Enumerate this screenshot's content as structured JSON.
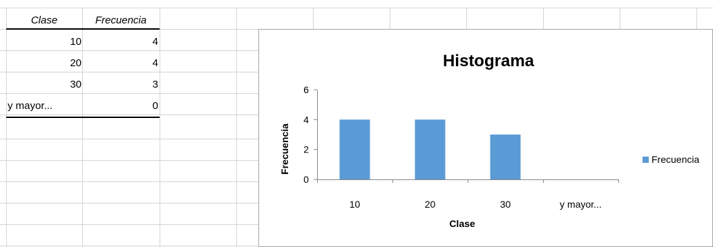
{
  "table": {
    "headers": [
      "Clase",
      "Frecuencia"
    ],
    "rows": [
      {
        "clase": "10",
        "frecuencia": "4"
      },
      {
        "clase": "20",
        "frecuencia": "4"
      },
      {
        "clase": "30",
        "frecuencia": "3"
      },
      {
        "clase": "y mayor...",
        "frecuencia": "0"
      }
    ]
  },
  "colors": {
    "bar": "#5B9BD5",
    "gridline": "#D4D4D4"
  },
  "chart_data": {
    "type": "bar",
    "title": "Histograma",
    "xlabel": "Clase",
    "ylabel": "Frecuencia",
    "categories": [
      "10",
      "20",
      "30",
      "y mayor..."
    ],
    "series": [
      {
        "name": "Frecuencia",
        "values": [
          4,
          4,
          3,
          0
        ]
      }
    ],
    "ylim": [
      0,
      6
    ],
    "yticks": [
      "0",
      "2",
      "4",
      "6"
    ],
    "grid": false,
    "legend": "right"
  }
}
